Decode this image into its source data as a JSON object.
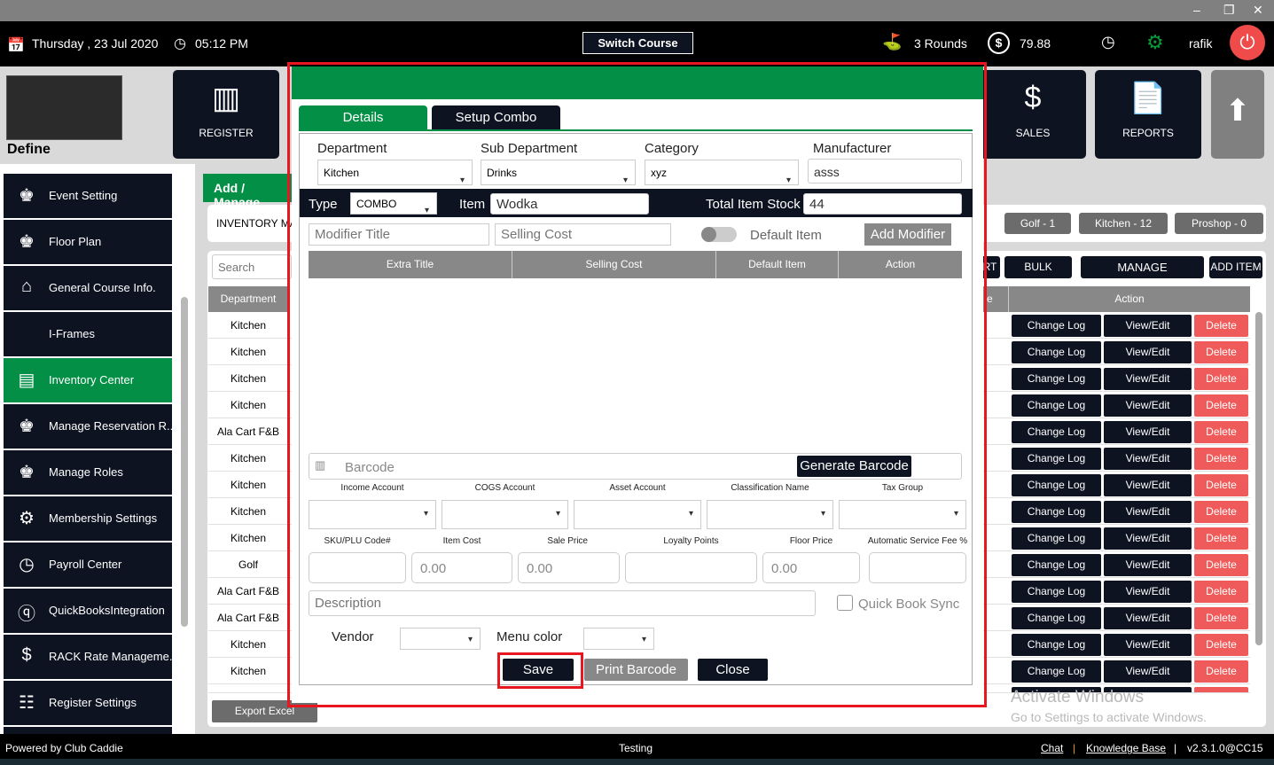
{
  "window": {
    "minimize": "–",
    "restore": "❐",
    "close": "✕"
  },
  "topbar": {
    "date": "Thursday ,  23 Jul 2020",
    "time": "05:12 PM",
    "switch_course": "Switch Course",
    "rounds": "3 Rounds",
    "balance": "79.88",
    "user": "rafik"
  },
  "tiles": {
    "define": "Define",
    "register": "REGISTER",
    "sales": "SALES",
    "reports": "REPORTS"
  },
  "sidebar": {
    "items": [
      {
        "label": "Event Setting",
        "icon": "org-chart-icon"
      },
      {
        "label": "Floor Plan",
        "icon": "org-chart-icon"
      },
      {
        "label": "General Course Info.",
        "icon": "home-icon"
      },
      {
        "label": "I-Frames",
        "icon": "code-icon"
      },
      {
        "label": "Inventory Center",
        "icon": "inventory-icon",
        "active": true
      },
      {
        "label": "Manage Reservation R...",
        "icon": "org-chart-icon"
      },
      {
        "label": "Manage Roles",
        "icon": "org-chart-icon"
      },
      {
        "label": "Membership Settings",
        "icon": "gear-icon"
      },
      {
        "label": "Payroll Center",
        "icon": "clock-icon"
      },
      {
        "label": "QuickBooksIntegration",
        "icon": "quickbooks-icon"
      },
      {
        "label": "RACK Rate Manageme...",
        "icon": "rate-icon"
      },
      {
        "label": "Register Settings",
        "icon": "register-settings-icon"
      }
    ]
  },
  "main": {
    "tab": "Add / Manage",
    "section": "INVENTORY MA",
    "counts": [
      "Golf - 1",
      "Kitchen - 12",
      "Proshop - 0"
    ],
    "search_placeholder": "Search",
    "buttons": {
      "export_partial": "RT",
      "bulk_import": "BULK IMPORT",
      "manage_categories": "MANAGE CATEGORIES",
      "add_item": "ADD ITEM"
    },
    "columns": {
      "department": "Department",
      "partial": "e",
      "action": "Action"
    },
    "rows": [
      "Kitchen",
      "Kitchen",
      "Kitchen",
      "Kitchen",
      "Ala Cart F&B",
      "Kitchen",
      "Kitchen",
      "Kitchen",
      "Kitchen",
      "Golf",
      "Ala Cart F&B",
      "Ala Cart F&B",
      "Kitchen",
      "Kitchen"
    ],
    "row_actions": {
      "change_log": "Change Log",
      "view_edit": "View/Edit",
      "delete": "Delete"
    },
    "export_excel": "Export Excel"
  },
  "watermark": {
    "title": "Activate Windows",
    "sub": "Go to Settings to activate Windows."
  },
  "footer": {
    "powered": "Powered by Club Caddie",
    "center": "Testing",
    "chat": "Chat",
    "kb": "Knowledge Base",
    "version": "v2.3.1.0@CC15",
    "sep": "|"
  },
  "modal": {
    "tabs": [
      "Details",
      "Setup Combo"
    ],
    "labels": {
      "department": "Department",
      "sub_department": "Sub Department",
      "category": "Category",
      "manufacturer": "Manufacturer",
      "type": "Type",
      "item": "Item",
      "total_stock": "Total Item Stock",
      "default_item": "Default Item",
      "income": "Income Account",
      "cogs": "COGS Account",
      "asset": "Asset Account",
      "classification": "Classification Name",
      "tax": "Tax Group",
      "sku": "SKU/PLU Code#",
      "item_cost": "Item Cost",
      "sale_price": "Sale Price",
      "loyalty": "Loyalty Points",
      "floor_price": "Floor Price",
      "service_fee": "Automatic Service Fee %",
      "quickbook": "Quick Book Sync",
      "vendor": "Vendor",
      "menu_color": "Menu color"
    },
    "values": {
      "department": "Kitchen",
      "sub_department": "Drinks",
      "category": "xyz",
      "manufacturer": "asss",
      "type": "COMBO",
      "item": "Wodka",
      "total_stock": "44",
      "item_cost": "0.00",
      "sale_price": "0.00",
      "floor_price": "0.00"
    },
    "placeholders": {
      "modifier_title": "Modifier Title",
      "selling_cost": "Selling Cost",
      "barcode": "Barcode",
      "description": "Description"
    },
    "grid_columns": [
      "Extra Title",
      "Selling Cost",
      "Default Item",
      "Action"
    ],
    "buttons": {
      "add_modifier": "Add Modifier",
      "generate_barcode": "Generate Barcode",
      "save": "Save",
      "print_barcode": "Print Barcode",
      "close": "Close"
    }
  },
  "colors": {
    "green": "#038f45",
    "dark": "#0d1321",
    "red_highlight": "#e8161f",
    "delete": "#ef5b5b"
  }
}
